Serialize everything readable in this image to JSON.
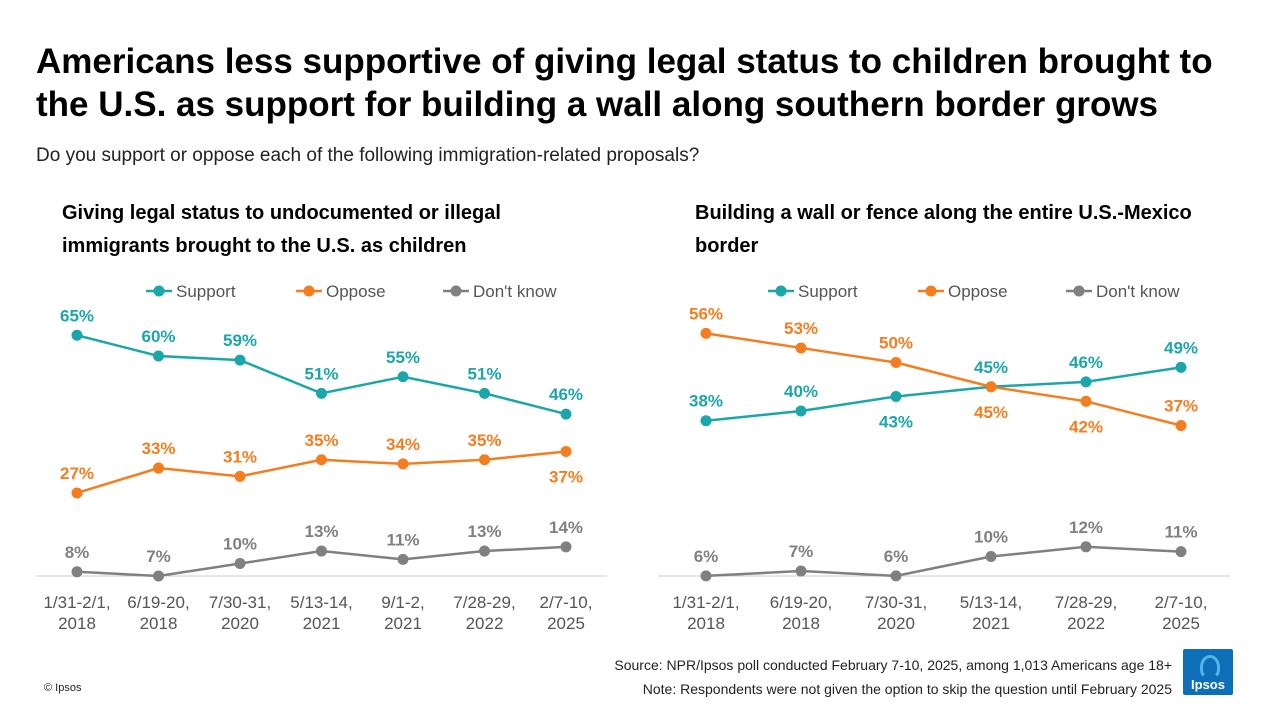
{
  "title": "Americans less supportive of giving legal status to children brought to the U.S. as support for building a wall along southern border grows",
  "subtitle": "Do you support or oppose each of the following immigration-related proposals?",
  "footer": {
    "source": "Source: NPR/Ipsos poll conducted February 7-10, 2025, among 1,013 Americans age 18+",
    "note": "Note: Respondents were not given the option to skip the question until February 2025",
    "copyright": "© Ipsos",
    "logo_text": "Ipsos"
  },
  "colors": {
    "support": "#1da6aa",
    "oppose": "#f47d1f",
    "dont_know": "#808080",
    "axis": "#cccccc"
  },
  "chart_data": [
    {
      "type": "line",
      "title": "Giving legal status to undocumented or illegal immigrants brought to the U.S. as children",
      "categories": [
        [
          "1/31-2/1,",
          "2018"
        ],
        [
          "6/19-20,",
          "2018"
        ],
        [
          "7/30-31,",
          "2020"
        ],
        [
          "5/13-14,",
          "2021"
        ],
        [
          "9/1-2,",
          "2021"
        ],
        [
          "7/28-29,",
          "2022"
        ],
        [
          "2/7-10,",
          "2025"
        ]
      ],
      "legend_position": "top",
      "ylim": [
        0,
        80
      ],
      "series": [
        {
          "name": "Support",
          "key": "support",
          "values": [
            65,
            60,
            59,
            51,
            55,
            51,
            46
          ],
          "labels": [
            "65%",
            "60%",
            "59%",
            "51%",
            "55%",
            "51%",
            "46%"
          ],
          "label_pos": [
            "above",
            "above",
            "above",
            "above",
            "above",
            "above",
            "above"
          ]
        },
        {
          "name": "Oppose",
          "key": "oppose",
          "values": [
            27,
            33,
            31,
            35,
            34,
            35,
            37
          ],
          "labels": [
            "27%",
            "33%",
            "31%",
            "35%",
            "34%",
            "35%",
            "37%"
          ],
          "label_pos": [
            "above",
            "above",
            "above",
            "above",
            "above",
            "above",
            "below"
          ]
        },
        {
          "name": "Don't know",
          "key": "dont_know",
          "values": [
            8,
            7,
            10,
            13,
            11,
            13,
            14
          ],
          "labels": [
            "8%",
            "7%",
            "10%",
            "13%",
            "11%",
            "13%",
            "14%"
          ],
          "label_pos": [
            "above",
            "above",
            "above",
            "above",
            "above",
            "above",
            "above"
          ]
        }
      ]
    },
    {
      "type": "line",
      "title": "Building a wall or fence along the entire U.S.-Mexico border",
      "categories": [
        [
          "1/31-2/1,",
          "2018"
        ],
        [
          "6/19-20,",
          "2018"
        ],
        [
          "7/30-31,",
          "2020"
        ],
        [
          "5/13-14,",
          "2021"
        ],
        [
          "7/28-29,",
          "2022"
        ],
        [
          "2/7-10,",
          "2025"
        ]
      ],
      "legend_position": "top",
      "ylim": [
        0,
        80
      ],
      "series": [
        {
          "name": "Support",
          "key": "support",
          "values": [
            38,
            40,
            43,
            45,
            46,
            49
          ],
          "labels": [
            "38%",
            "40%",
            "43%",
            "45%",
            "46%",
            "49%"
          ],
          "label_pos": [
            "above",
            "above",
            "below",
            "above",
            "above",
            "above"
          ]
        },
        {
          "name": "Oppose",
          "key": "oppose",
          "values": [
            56,
            53,
            50,
            45,
            42,
            37
          ],
          "labels": [
            "56%",
            "53%",
            "50%",
            "45%",
            "42%",
            "37%"
          ],
          "label_pos": [
            "above",
            "above",
            "above",
            "below",
            "below",
            "above"
          ]
        },
        {
          "name": "Don't know",
          "key": "dont_know",
          "values": [
            6,
            7,
            6,
            10,
            12,
            11
          ],
          "labels": [
            "6%",
            "7%",
            "6%",
            "10%",
            "12%",
            "11%"
          ],
          "label_pos": [
            "above",
            "above",
            "above",
            "above",
            "above",
            "above"
          ]
        }
      ]
    }
  ]
}
